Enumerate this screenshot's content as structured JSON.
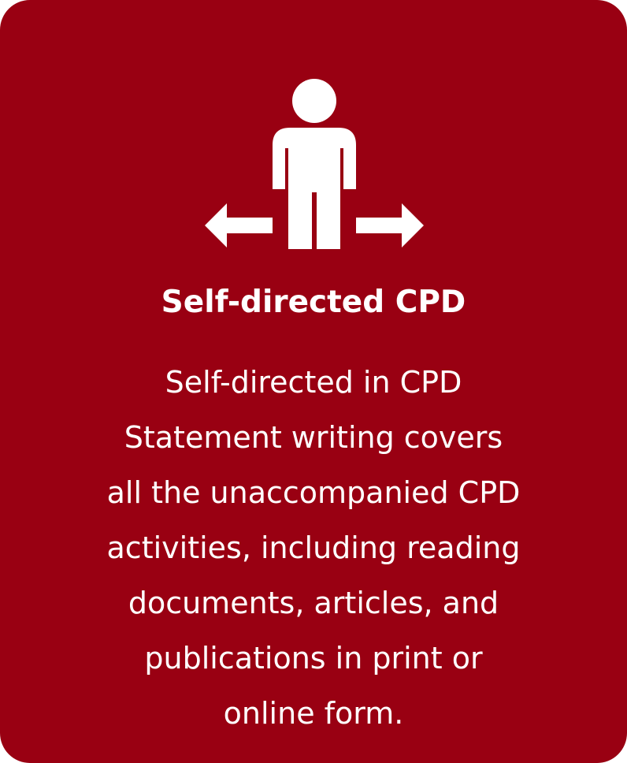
{
  "card": {
    "background": "#990012",
    "icon": "person-with-arrows-icon",
    "title": "Self-directed CPD",
    "lines": [
      "Self-directed in CPD",
      "Statement writing covers",
      "all the unaccompanied CPD",
      "activities, including reading",
      "documents, articles, and",
      "publications in print or",
      "online form."
    ]
  }
}
